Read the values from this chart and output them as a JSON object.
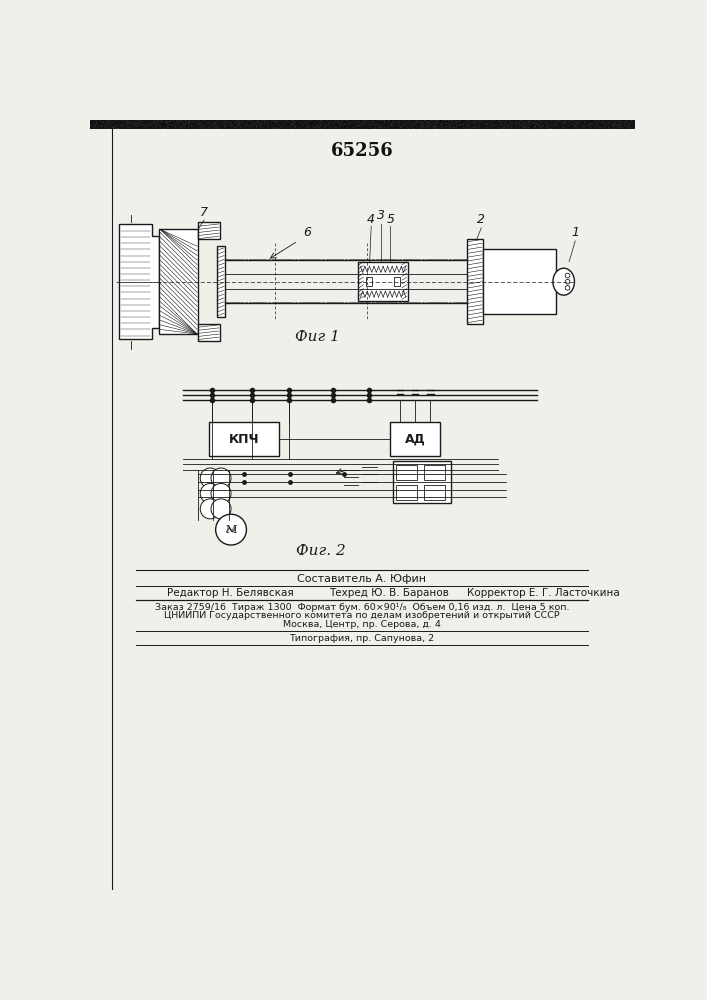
{
  "title_number": "65256",
  "fig1_caption": "Фиг 1",
  "fig2_caption": "Фиг. 2",
  "composer_line": "Составитель А. Юфин",
  "editor_label": "Редактор Н. Белявская",
  "tech_label": "Техред Ю. В. Баранов",
  "corrector_label": "Корректор Е. Г. Ласточкина",
  "info_line1": "Заказ 2759/16  Тираж 1300  Формат бум. 60×90¹/₈  Объем 0,16 изд. л.  Цена 5 коп.",
  "info_line2": "ЦНИИПИ Государственного комитета по делам изобретений и открытий СССР",
  "info_line3": "Москва, Центр, пр. Серова, д. 4",
  "info_line4": "Типография, пр. Сапунова, 2",
  "bg_color": "#f0f0ea",
  "line_color": "#1a1a1a"
}
